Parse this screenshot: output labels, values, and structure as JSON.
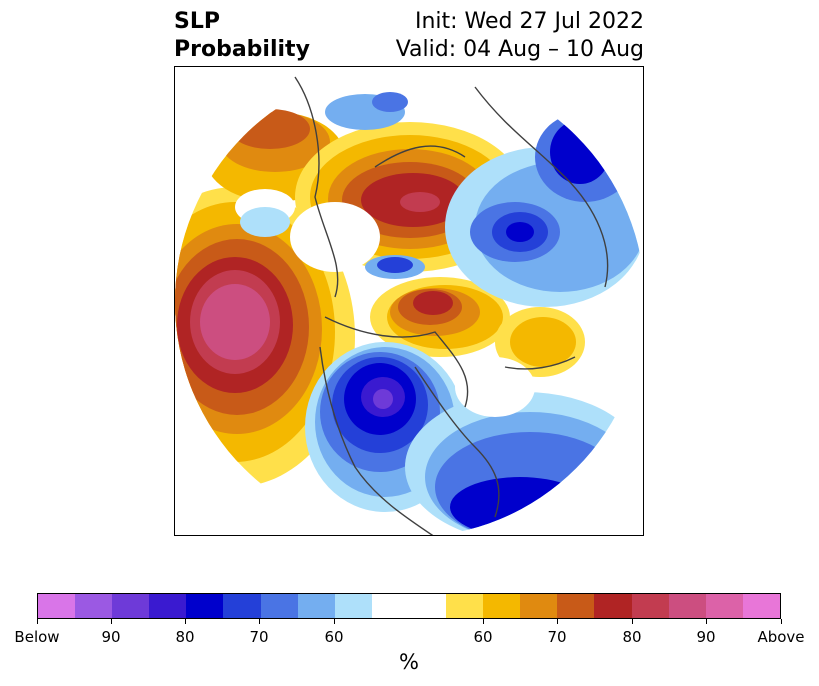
{
  "header": {
    "title_line1": "SLP",
    "title_line2": "Probability",
    "init_text": "Init: Wed 27 Jul 2022",
    "valid_text": "Valid: 04 Aug – 10 Aug"
  },
  "map": {
    "projection": "north-polar-stereographic",
    "variable": "SLP probability",
    "background_color": "#ffffff",
    "coastline_color": "#404040"
  },
  "colorbar": {
    "colors": [
      "#d975e8",
      "#9b59e3",
      "#6e3ad8",
      "#3a1ad0",
      "#0000cc",
      "#2440d8",
      "#4a74e4",
      "#74aef0",
      "#aee0fa",
      "#ffffff",
      "#ffffff",
      "#ffe04a",
      "#f4b800",
      "#e08a10",
      "#c85a18",
      "#b02424",
      "#c23c50",
      "#cc4e80",
      "#dc62a8",
      "#e876d8"
    ],
    "tick_labels": [
      "Below",
      "90",
      "80",
      "70",
      "60",
      "60",
      "70",
      "80",
      "90",
      "Above"
    ],
    "label": "%"
  }
}
